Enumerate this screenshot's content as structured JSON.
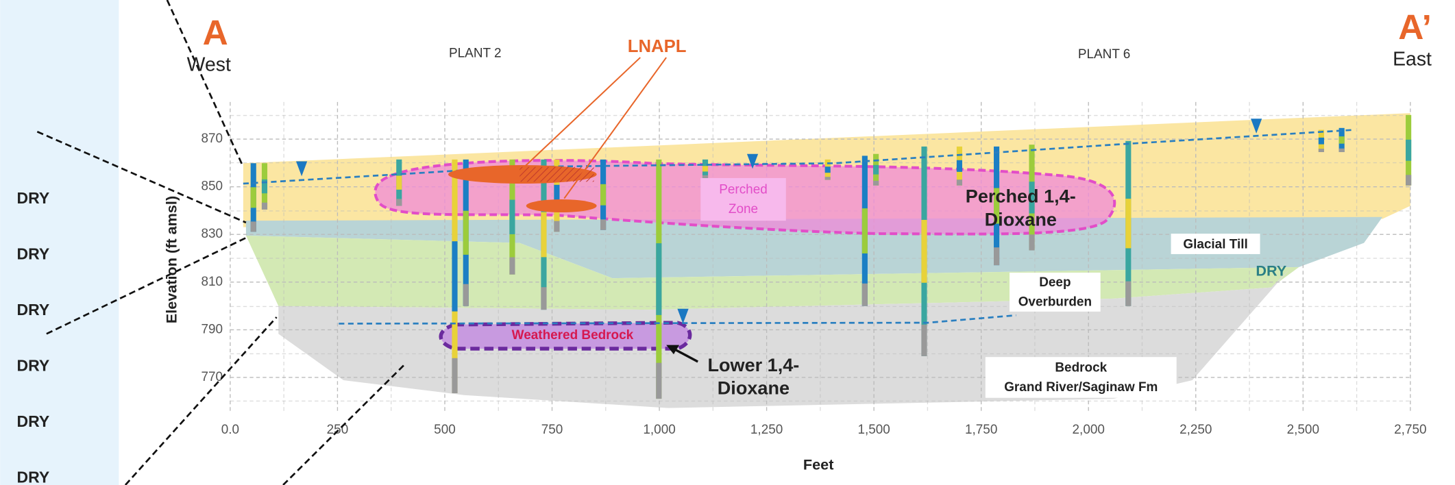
{
  "left_panel": {
    "labels": [
      "DRY",
      "DRY",
      "DRY",
      "DRY",
      "DRY",
      "DRY"
    ]
  },
  "section": {
    "start": {
      "letter": "A",
      "direction": "West"
    },
    "end": {
      "letter": "A’",
      "direction": "East"
    },
    "plants": [
      "PLANT 2",
      "PLANT 6"
    ],
    "lnapl": "LNAPL"
  },
  "plot": {
    "y_axis": {
      "label": "Elevation (ft amsl)",
      "ticks": [
        "870",
        "850",
        "830",
        "810",
        "790",
        "770"
      ]
    },
    "x_axis": {
      "label": "Feet",
      "ticks": [
        "0.0",
        "250",
        "500",
        "750",
        "1,000",
        "1,250",
        "1,500",
        "1,750",
        "2,000",
        "2,250",
        "2,500",
        "2,750"
      ]
    }
  },
  "annotations": {
    "perched_zone": [
      "Perched",
      "Zone"
    ],
    "perched_dioxane": [
      "Perched 1,4-",
      "Dioxane"
    ],
    "weathered_bedrock": "Weathered Bedrock",
    "lower_dioxane": [
      "Lower 1,4-",
      "Dioxane"
    ],
    "glacial_till": "Glacial Till",
    "dry": "DRY",
    "deep_overburden": [
      "Deep",
      "Overburden"
    ],
    "bedrock": [
      "Bedrock",
      "Grand River/Saginaw Fm"
    ]
  }
}
